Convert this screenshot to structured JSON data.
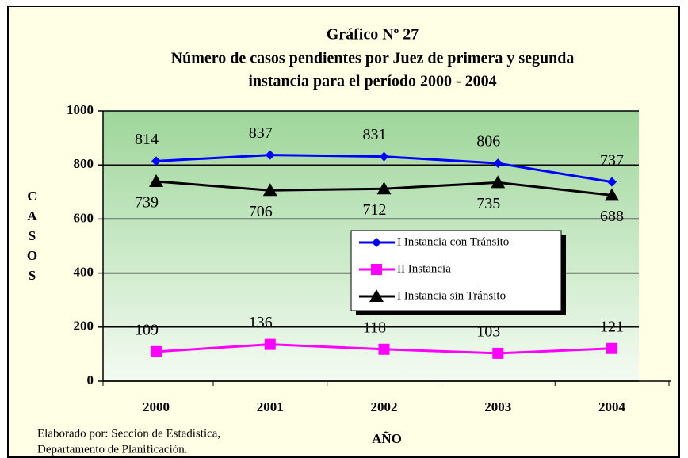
{
  "chart_data": {
    "type": "line",
    "title": "Gráfico Nº 27",
    "subtitle": [
      "Número de casos pendientes por Juez de primera y segunda",
      "instancia  para el período  2000 - 2004"
    ],
    "x_label": "AÑO",
    "y_label": "CASOS",
    "source": [
      "Elaborado por: Sección de Estadística,",
      "Departamento de Planificación."
    ],
    "categories": [
      "2000",
      "2001",
      "2002",
      "2003",
      "2004"
    ],
    "series": [
      {
        "name": "I Instancia con Tránsito",
        "color": "#0000ff",
        "marker": "diamond",
        "label_position": "above",
        "values": [
          814,
          837,
          831,
          806,
          737
        ]
      },
      {
        "name": "II Instancia",
        "color": "#ff00ff",
        "marker": "square",
        "label_position": "above",
        "values": [
          109,
          136,
          118,
          103,
          121
        ]
      },
      {
        "name": "I Instancia sin Tránsito",
        "color": "#000000",
        "marker": "triangle",
        "label_position": "below",
        "values": [
          739,
          706,
          712,
          735,
          688
        ]
      }
    ],
    "ylim": [
      0,
      1000
    ],
    "yticks": [
      0,
      200,
      400,
      600,
      800,
      1000
    ],
    "grid": true
  }
}
